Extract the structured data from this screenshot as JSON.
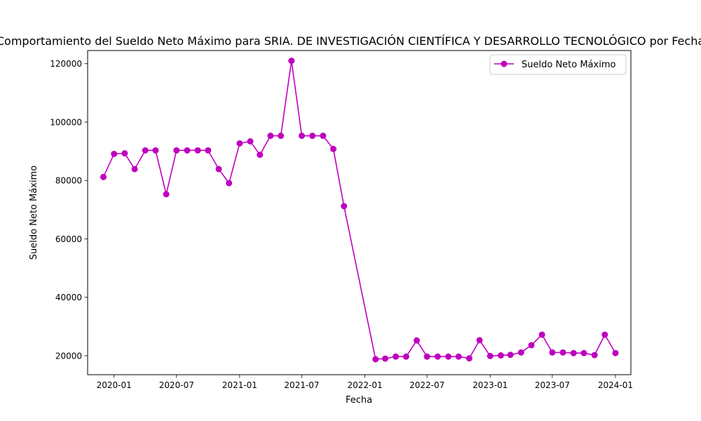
{
  "chart_data": {
    "type": "line",
    "title": "Comportamiento del Sueldo Neto Máximo para SRIA. DE INVESTIGACIÓN CIENTÍFICA Y DESARROLLO TECNOLÓGICO por Fecha",
    "xlabel": "Fecha",
    "ylabel": "Sueldo Neto Máximo",
    "color": "#bf00bf",
    "marker": "circle",
    "legend_position": "top-right",
    "x_ticks": [
      "2020-01",
      "2020-07",
      "2021-01",
      "2021-07",
      "2022-01",
      "2022-07",
      "2023-01",
      "2023-07",
      "2024-01"
    ],
    "y_ticks": [
      20000,
      40000,
      60000,
      80000,
      100000,
      120000
    ],
    "xlim": [
      "2019-10-16",
      "2024-02-15"
    ],
    "ylim": [
      13500,
      124500
    ],
    "series": [
      {
        "name": "Sueldo Neto Máximo",
        "x": [
          "2019-12-01",
          "2020-01-01",
          "2020-02-01",
          "2020-03-01",
          "2020-04-01",
          "2020-05-01",
          "2020-06-01",
          "2020-07-01",
          "2020-08-01",
          "2020-09-01",
          "2020-10-01",
          "2020-11-01",
          "2020-12-01",
          "2021-01-01",
          "2021-02-01",
          "2021-03-01",
          "2021-04-01",
          "2021-05-01",
          "2021-06-01",
          "2021-07-01",
          "2021-08-01",
          "2021-09-01",
          "2021-10-01",
          "2021-11-01",
          "2022-02-01",
          "2022-03-01",
          "2022-04-01",
          "2022-05-01",
          "2022-06-01",
          "2022-07-01",
          "2022-08-01",
          "2022-09-01",
          "2022-10-01",
          "2022-11-01",
          "2022-12-01",
          "2023-01-01",
          "2023-02-01",
          "2023-03-01",
          "2023-04-01",
          "2023-05-01",
          "2023-06-01",
          "2023-07-01",
          "2023-08-01",
          "2023-09-01",
          "2023-10-01",
          "2023-11-01",
          "2023-12-01",
          "2024-01-01"
        ],
        "values": [
          81200,
          89100,
          89300,
          83900,
          90300,
          90300,
          75300,
          90300,
          90300,
          90300,
          90300,
          83900,
          79100,
          92700,
          93400,
          88800,
          95300,
          95300,
          121000,
          95300,
          95300,
          95300,
          90800,
          71200,
          18800,
          19000,
          19700,
          19700,
          25200,
          19700,
          19700,
          19700,
          19700,
          19100,
          25300,
          19900,
          20100,
          20300,
          21100,
          23600,
          27200,
          21100,
          21100,
          20900,
          20900,
          20200,
          27200,
          20900
        ]
      }
    ]
  }
}
